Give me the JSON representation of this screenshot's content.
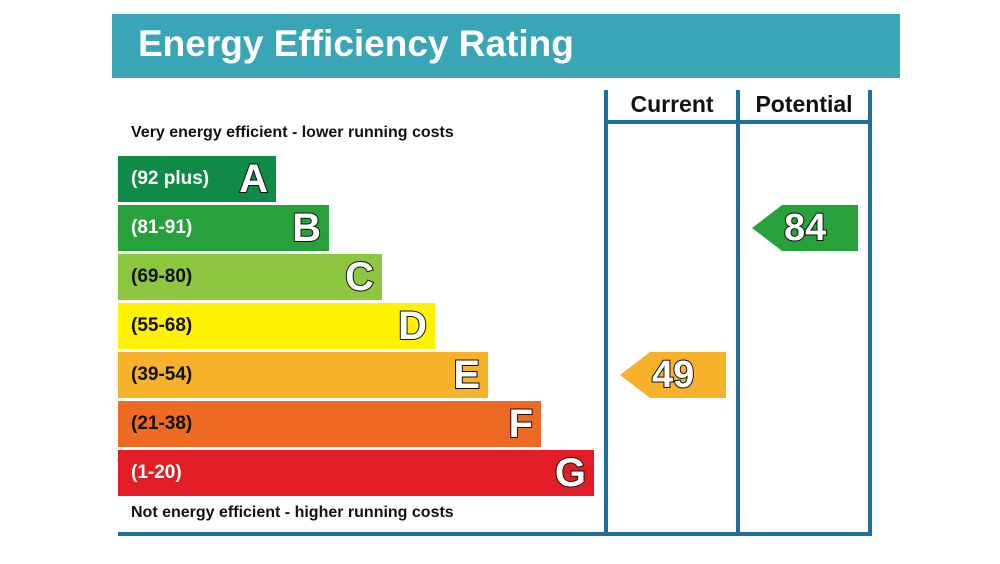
{
  "chart_data": {
    "type": "bar",
    "title": "Energy Efficiency Rating",
    "top_note": "Very energy efficient - lower running costs",
    "bottom_note": "Not energy efficient - higher running costs",
    "columns": [
      "Current",
      "Potential"
    ],
    "bands": [
      {
        "letter": "A",
        "range": "(92 plus)",
        "color": "#0f8a47"
      },
      {
        "letter": "B",
        "range": "(81-91)",
        "color": "#27a23a"
      },
      {
        "letter": "C",
        "range": "(69-80)",
        "color": "#8dc63f"
      },
      {
        "letter": "D",
        "range": "(55-68)",
        "color": "#fff200"
      },
      {
        "letter": "E",
        "range": "(39-54)",
        "color": "#f7b12b"
      },
      {
        "letter": "F",
        "range": "(21-38)",
        "color": "#ee6a23"
      },
      {
        "letter": "G",
        "range": "(1-20)",
        "color": "#e31d25"
      }
    ],
    "ratings": {
      "current": {
        "value": 49,
        "band": "E",
        "color": "#f7b12b"
      },
      "potential": {
        "value": 84,
        "band": "B",
        "color": "#27a23a"
      }
    }
  }
}
